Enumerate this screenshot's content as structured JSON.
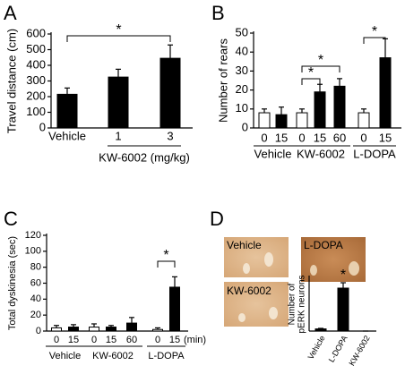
{
  "chart_data": [
    {
      "type": "bar",
      "panel": "A",
      "ylabel": "Travel distance (cm)",
      "ylim": [
        0,
        600
      ],
      "yticks": [
        0,
        100,
        200,
        300,
        400,
        500,
        600
      ],
      "groups": [
        {
          "name": null,
          "categories": [
            "Vehicle"
          ],
          "values": [
            215
          ],
          "errors": [
            40
          ],
          "colors": [
            "#000000"
          ]
        },
        {
          "name": "KW-6002 (mg/kg)",
          "categories": [
            "1",
            "3"
          ],
          "values": [
            325,
            445
          ],
          "errors": [
            50,
            85
          ],
          "colors": [
            "#000000",
            "#000000"
          ]
        }
      ],
      "annotations": [
        {
          "text": "*",
          "between": [
            [
              0,
              0
            ],
            [
              1,
              1
            ]
          ]
        }
      ]
    },
    {
      "type": "bar",
      "panel": "B",
      "ylabel": "Number of rears",
      "ylim": [
        0,
        50
      ],
      "yticks": [
        0,
        10,
        20,
        30,
        40,
        50
      ],
      "groups": [
        {
          "name": "Vehicle",
          "categories": [
            "0",
            "15"
          ],
          "values": [
            8,
            7
          ],
          "errors": [
            2,
            4
          ],
          "colors": [
            "#ffffff",
            "#000000"
          ]
        },
        {
          "name": "KW-6002",
          "categories": [
            "0",
            "15",
            "60"
          ],
          "values": [
            8,
            19,
            22
          ],
          "errors": [
            2,
            4,
            4
          ],
          "colors": [
            "#ffffff",
            "#000000",
            "#000000"
          ]
        },
        {
          "name": "L-DOPA",
          "categories": [
            "0",
            "15"
          ],
          "values": [
            8,
            37
          ],
          "errors": [
            2,
            10
          ],
          "colors": [
            "#ffffff",
            "#000000"
          ]
        }
      ],
      "annotations": [
        {
          "text": "*",
          "between": [
            [
              1,
              0
            ],
            [
              1,
              1
            ]
          ]
        },
        {
          "text": "*",
          "between": [
            [
              1,
              0
            ],
            [
              1,
              2
            ]
          ]
        },
        {
          "text": "*",
          "between": [
            [
              2,
              0
            ],
            [
              2,
              1
            ]
          ]
        }
      ]
    },
    {
      "type": "bar",
      "panel": "C",
      "ylabel": "Total dyskinesia (sec)",
      "unit_label": "(min)",
      "ylim": [
        0,
        120
      ],
      "yticks": [
        0,
        20,
        40,
        60,
        80,
        100,
        120
      ],
      "groups": [
        {
          "name": "Vehicle",
          "categories": [
            "0",
            "15"
          ],
          "values": [
            4,
            5
          ],
          "errors": [
            3,
            3
          ],
          "colors": [
            "#ffffff",
            "#000000"
          ]
        },
        {
          "name": "KW-6002",
          "categories": [
            "0",
            "15",
            "60"
          ],
          "values": [
            5,
            5,
            10
          ],
          "errors": [
            4,
            2,
            7
          ],
          "colors": [
            "#ffffff",
            "#000000",
            "#000000"
          ]
        },
        {
          "name": "L-DOPA",
          "categories": [
            "0",
            "15"
          ],
          "values": [
            2,
            55
          ],
          "errors": [
            2,
            13
          ],
          "colors": [
            "#ffffff",
            "#000000"
          ]
        }
      ],
      "annotations": [
        {
          "text": "*",
          "between": [
            [
              2,
              0
            ],
            [
              2,
              1
            ]
          ]
        }
      ]
    },
    {
      "type": "bar",
      "panel": "D",
      "ylabel": [
        "Number of",
        "pERK neurons"
      ],
      "ylim": [
        0,
        50
      ],
      "image_labels": [
        "Vehicle",
        "L-DOPA",
        "KW-6002"
      ],
      "groups": [
        {
          "name": null,
          "categories": [
            "Vehicle",
            "L-DOPA",
            "KW-6002"
          ],
          "values": [
            2,
            40,
            0
          ],
          "errors": [
            0.5,
            5,
            0
          ],
          "colors": [
            "#000000",
            "#000000",
            "#000000"
          ]
        }
      ],
      "annotations": [
        {
          "text": "*",
          "at": [
            0,
            1
          ]
        }
      ]
    }
  ]
}
